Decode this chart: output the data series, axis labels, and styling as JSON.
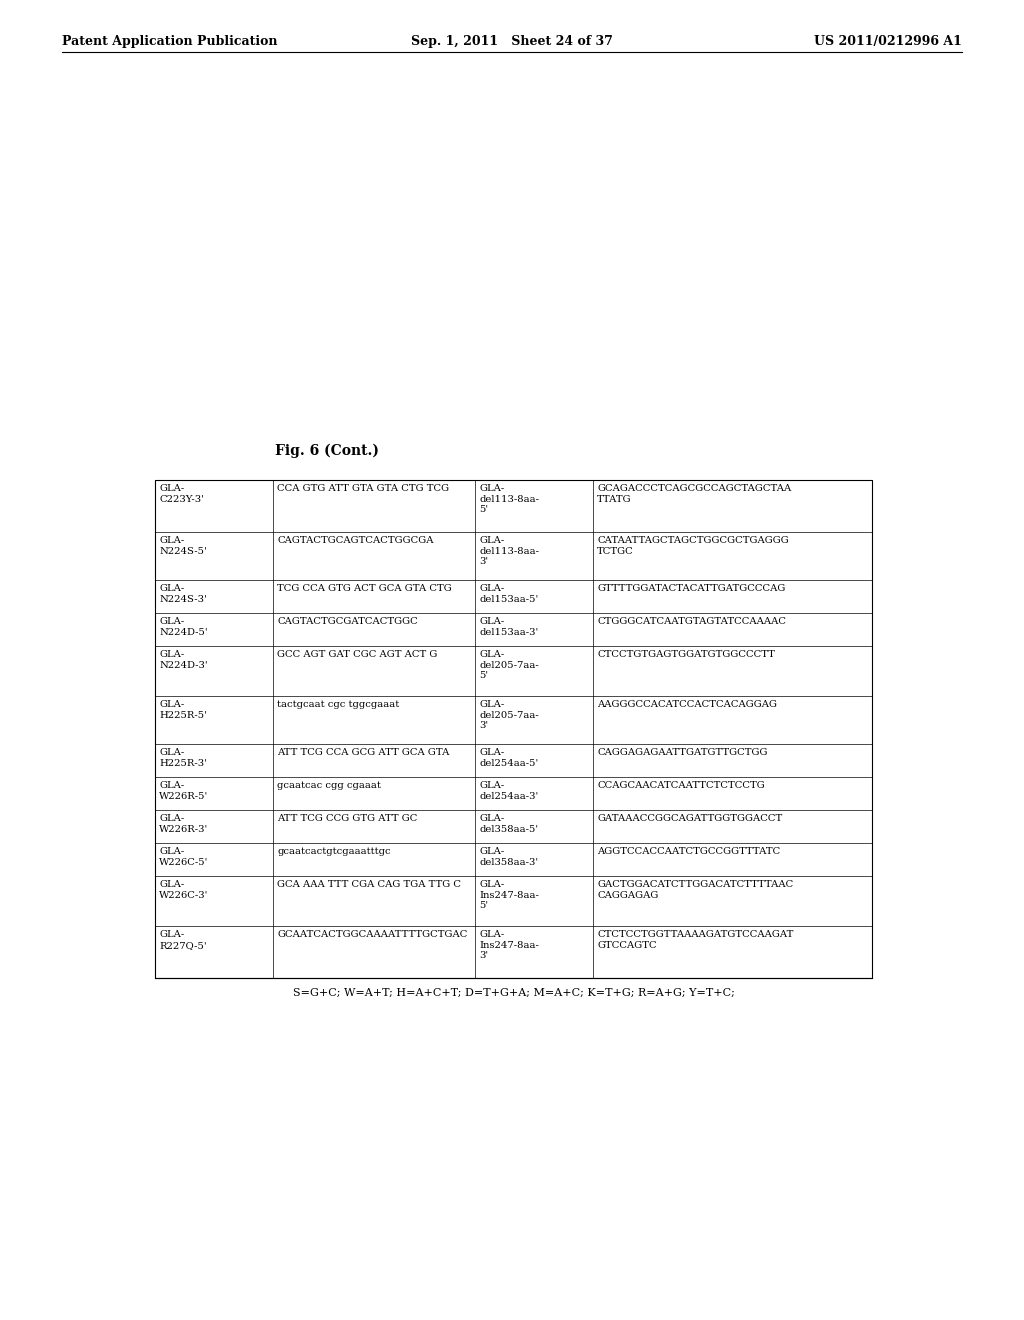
{
  "header_left": "Patent Application Publication",
  "header_center": "Sep. 1, 2011   Sheet 24 of 37",
  "header_right": "US 2011/0212996 A1",
  "figure_title": "Fig. 6 (Cont.)",
  "footer_note": "S=G+C; W=A+T; H=A+C+T; D=T+G+A; M=A+C; K=T+G; R=A+G; Y=T+C;",
  "table_rows": [
    {
      "col1": "GLA-\nC223Y-3'",
      "col2": "CCA GTG ATT GTA GTA CTG TCG",
      "col3": "GLA-\ndel113-8aa-\n5'",
      "col4": "GCAGACCCTCAGCGCCAGCTAGCTAA\nTTATG"
    },
    {
      "col1": "GLA-\nN224S-5'",
      "col2": "CAGTACTGCAGTCACTGGCGA",
      "col3": "GLA-\ndel113-8aa-\n3'",
      "col4": "CATAATTAGCTAGCTGGCGCTGAGGG\nTCTGC"
    },
    {
      "col1": "GLA-\nN224S-3'",
      "col2": "TCG CCA GTG ACT GCA GTA CTG",
      "col3": "GLA-\ndel153aa-5'",
      "col4": "GTTTTGGATACTACATTGATGCCCAG"
    },
    {
      "col1": "GLA-\nN224D-5'",
      "col2": "CAGTACTGCGATCACTGGC",
      "col3": "GLA-\ndel153aa-3'",
      "col4": "CTGGGCATCAATGTAGTATCCAAAAC"
    },
    {
      "col1": "GLA-\nN224D-3'",
      "col2": "GCC AGT GAT CGC AGT ACT G",
      "col3": "GLA-\ndel205-7aa-\n5'",
      "col4": "CTCCTGTGAGTGGATGTGGCCCTT"
    },
    {
      "col1": "GLA-\nH225R-5'",
      "col2": "tactgcaat cgc tggcgaaat",
      "col3": "GLA-\ndel205-7aa-\n3'",
      "col4": "AAGGGCCACATCCACTCACAGGAG"
    },
    {
      "col1": "GLA-\nH225R-3'",
      "col2": "ATT TCG CCA GCG ATT GCA GTA",
      "col3": "GLA-\ndel254aa-5'",
      "col4": "CAGGAGAGAATTGATGTTGCTGG"
    },
    {
      "col1": "GLA-\nW226R-5'",
      "col2": "gcaatcac cgg cgaaat",
      "col3": "GLA-\ndel254aa-3'",
      "col4": "CCAGCAACATCAATTCTCTCCTG"
    },
    {
      "col1": "GLA-\nW226R-3'",
      "col2": "ATT TCG CCG GTG ATT GC",
      "col3": "GLA-\ndel358aa-5'",
      "col4": "GATAAACCGGCAGATTGGTGGACCT"
    },
    {
      "col1": "GLA-\nW226C-5'",
      "col2": "gcaatcactgtcgaaatttgc",
      "col3": "GLA-\ndel358aa-3'",
      "col4": "AGGTCCACCAATCTGCCGGTTTATC"
    },
    {
      "col1": "GLA-\nW226C-3'",
      "col2": "GCA AAA TTT CGA CAG TGA TTG C",
      "col3": "GLA-\nIns247-8aa-\n5'",
      "col4": "GACTGGACATCTTGGACATCTTTTAAC\nCAGGAGAG"
    },
    {
      "col1": "GLA-\nR227Q-5'",
      "col2": "GCAATCACTGGCAAAATTTTGCTGAC",
      "col3": "GLA-\nIns247-8aa-\n3'",
      "col4": "CTCTCCTGGTTAAAAGATGTCCAAGAT\nGTCCAGTC"
    }
  ],
  "bg_color": "#ffffff",
  "text_color": "#000000",
  "header_font_size": 9.0,
  "table_font_size": 7.2,
  "fig_title_font_size": 10,
  "footer_font_size": 8.0
}
